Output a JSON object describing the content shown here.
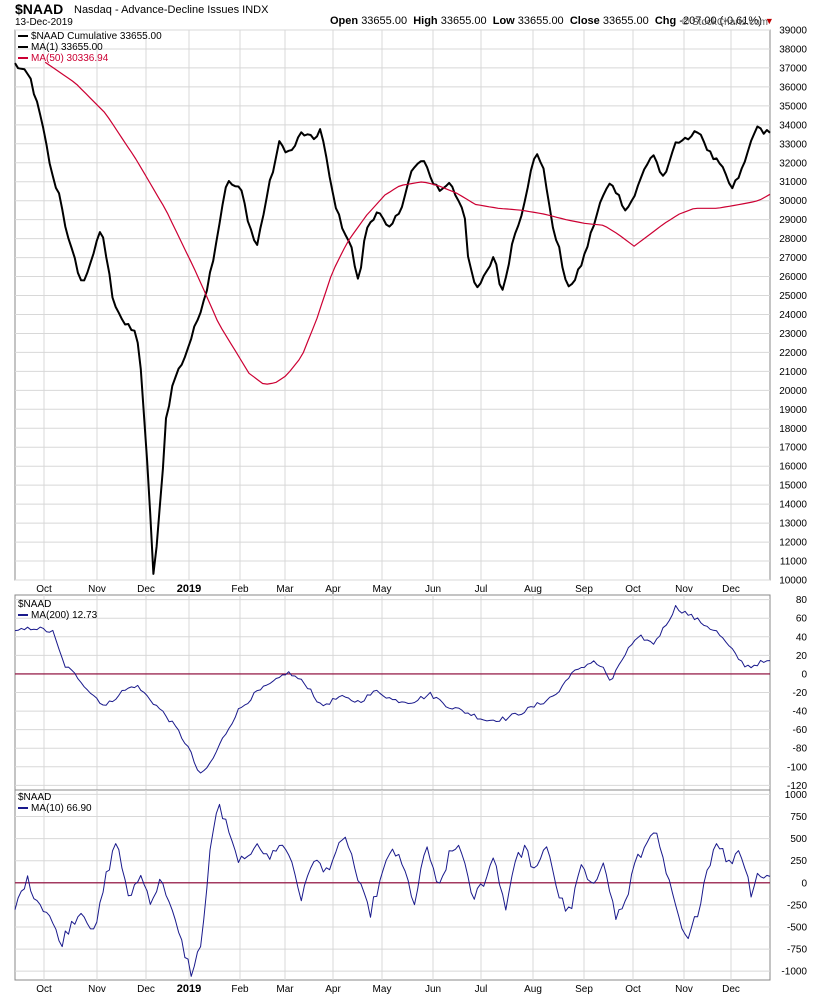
{
  "header": {
    "symbol": "$NAAD",
    "description": "Nasdaq - Advance-Decline Issues  INDX",
    "date": "13-Dec-2019",
    "open_label": "Open",
    "open": "33655.00",
    "high_label": "High",
    "high": "33655.00",
    "low_label": "Low",
    "low": "33655.00",
    "close_label": "Close",
    "close": "33655.00",
    "chg_label": "Chg",
    "chg": "-207.00 (-0.61%)",
    "brand": "© StockCharts.com"
  },
  "colors": {
    "price": "#000000",
    "ma50": "#cc0033",
    "osc": "#1a1a8c",
    "zero": "#8b0033",
    "grid": "#d8d8d8"
  },
  "legend": {
    "main": [
      "$NAAD Cumulative 33655.00",
      "MA(1) 33655.00",
      "MA(50) 30336.94"
    ],
    "panel2": [
      "$NAAD",
      "MA(200) 12.73"
    ],
    "panel3": [
      "$NAAD",
      "MA(10) 66.90"
    ]
  },
  "x_axis": {
    "labels": [
      "Oct",
      "Nov",
      "Dec",
      "2019",
      "Feb",
      "Mar",
      "Apr",
      "May",
      "Jun",
      "Jul",
      "Aug",
      "Sep",
      "Oct",
      "Nov",
      "Dec"
    ],
    "bold_label": "2019"
  },
  "chart_data": [
    {
      "type": "line",
      "title": "$NAAD Cumulative",
      "ylim": [
        10000,
        39000
      ],
      "yticks": [
        10000,
        11000,
        12000,
        13000,
        14000,
        15000,
        16000,
        17000,
        18000,
        19000,
        20000,
        21000,
        22000,
        23000,
        24000,
        25000,
        26000,
        27000,
        28000,
        29000,
        30000,
        31000,
        32000,
        33000,
        34000,
        35000,
        36000,
        37000,
        38000,
        39000
      ],
      "grid": true,
      "legend_position": "top-left",
      "series": [
        {
          "name": "MA(1) 33655.00",
          "keypoints": [
            [
              0,
              37200
            ],
            [
              0.02,
              36500
            ],
            [
              0.035,
              34200
            ],
            [
              0.05,
              31200
            ],
            [
              0.06,
              30200
            ],
            [
              0.07,
              28000
            ],
            [
              0.09,
              25500
            ],
            [
              0.1,
              26800
            ],
            [
              0.115,
              28500
            ],
            [
              0.13,
              24800
            ],
            [
              0.145,
              23500
            ],
            [
              0.16,
              23000
            ],
            [
              0.165,
              22200
            ],
            [
              0.17,
              19000
            ],
            [
              0.178,
              14500
            ],
            [
              0.183,
              10200
            ],
            [
              0.188,
              11800
            ],
            [
              0.195,
              15500
            ],
            [
              0.2,
              18500
            ],
            [
              0.21,
              20500
            ],
            [
              0.225,
              21800
            ],
            [
              0.24,
              23500
            ],
            [
              0.255,
              25500
            ],
            [
              0.265,
              27500
            ],
            [
              0.28,
              31000
            ],
            [
              0.29,
              30800
            ],
            [
              0.3,
              30500
            ],
            [
              0.31,
              28800
            ],
            [
              0.32,
              27500
            ],
            [
              0.335,
              30500
            ],
            [
              0.35,
              33000
            ],
            [
              0.365,
              32500
            ],
            [
              0.38,
              33600
            ],
            [
              0.395,
              33200
            ],
            [
              0.405,
              33800
            ],
            [
              0.42,
              30500
            ],
            [
              0.43,
              29000
            ],
            [
              0.445,
              27600
            ],
            [
              0.455,
              25600
            ],
            [
              0.465,
              28500
            ],
            [
              0.48,
              29500
            ],
            [
              0.495,
              28400
            ],
            [
              0.51,
              29500
            ],
            [
              0.525,
              31500
            ],
            [
              0.54,
              32200
            ],
            [
              0.55,
              31200
            ],
            [
              0.565,
              30500
            ],
            [
              0.575,
              31000
            ],
            [
              0.585,
              30200
            ],
            [
              0.595,
              29500
            ],
            [
              0.6,
              27200
            ],
            [
              0.61,
              25200
            ],
            [
              0.625,
              26200
            ],
            [
              0.635,
              27200
            ],
            [
              0.645,
              25000
            ],
            [
              0.66,
              28000
            ],
            [
              0.672,
              29500
            ],
            [
              0.68,
              31000
            ],
            [
              0.69,
              32500
            ],
            [
              0.7,
              31800
            ],
            [
              0.71,
              29000
            ],
            [
              0.72,
              27600
            ],
            [
              0.73,
              25500
            ],
            [
              0.742,
              25800
            ],
            [
              0.755,
              27200
            ],
            [
              0.767,
              28800
            ],
            [
              0.778,
              30200
            ],
            [
              0.79,
              31000
            ],
            [
              0.8,
              30200
            ],
            [
              0.81,
              29500
            ],
            [
              0.822,
              30400
            ],
            [
              0.835,
              31800
            ],
            [
              0.845,
              32500
            ],
            [
              0.86,
              31000
            ],
            [
              0.872,
              32800
            ],
            [
              0.885,
              33400
            ],
            [
              0.895,
              33200
            ],
            [
              0.905,
              33800
            ],
            [
              0.92,
              32500
            ],
            [
              0.935,
              31800
            ],
            [
              0.95,
              30600
            ],
            [
              0.965,
              31800
            ],
            [
              0.98,
              33800
            ],
            [
              0.99,
              33700
            ],
            [
              1,
              33655
            ]
          ]
        },
        {
          "name": "MA(50) 30336.94",
          "keypoints": [
            [
              0.04,
              37300
            ],
            [
              0.08,
              36200
            ],
            [
              0.12,
              34600
            ],
            [
              0.16,
              32200
            ],
            [
              0.2,
              29500
            ],
            [
              0.24,
              26200
            ],
            [
              0.27,
              23500
            ],
            [
              0.29,
              22200
            ],
            [
              0.31,
              20900
            ],
            [
              0.33,
              20300
            ],
            [
              0.345,
              20400
            ],
            [
              0.36,
              20800
            ],
            [
              0.38,
              21800
            ],
            [
              0.4,
              23800
            ],
            [
              0.42,
              26200
            ],
            [
              0.44,
              27800
            ],
            [
              0.465,
              29200
            ],
            [
              0.49,
              30300
            ],
            [
              0.51,
              30800
            ],
            [
              0.54,
              31000
            ],
            [
              0.56,
              30800
            ],
            [
              0.585,
              30400
            ],
            [
              0.61,
              29800
            ],
            [
              0.64,
              29600
            ],
            [
              0.67,
              29500
            ],
            [
              0.7,
              29300
            ],
            [
              0.73,
              29000
            ],
            [
              0.755,
              28800
            ],
            [
              0.78,
              28700
            ],
            [
              0.8,
              28200
            ],
            [
              0.82,
              27600
            ],
            [
              0.84,
              28200
            ],
            [
              0.86,
              28800
            ],
            [
              0.88,
              29300
            ],
            [
              0.9,
              29600
            ],
            [
              0.93,
              29600
            ],
            [
              0.96,
              29800
            ],
            [
              0.985,
              30000
            ],
            [
              1,
              30336.94
            ]
          ]
        }
      ]
    },
    {
      "type": "line",
      "title": "$NAAD",
      "ylim": [
        -125,
        85
      ],
      "yticks": [
        -120,
        -100,
        -80,
        -60,
        -40,
        -20,
        0,
        20,
        40,
        60,
        80
      ],
      "grid": true,
      "reference_line": 0,
      "series": [
        {
          "name": "MA(200) 12.73",
          "keypoints": [
            [
              0,
              45
            ],
            [
              0.025,
              50
            ],
            [
              0.05,
              45
            ],
            [
              0.065,
              10
            ],
            [
              0.085,
              -5
            ],
            [
              0.1,
              -20
            ],
            [
              0.12,
              -35
            ],
            [
              0.14,
              -20
            ],
            [
              0.16,
              -12
            ],
            [
              0.18,
              -28
            ],
            [
              0.2,
              -45
            ],
            [
              0.215,
              -60
            ],
            [
              0.23,
              -80
            ],
            [
              0.245,
              -110
            ],
            [
              0.26,
              -95
            ],
            [
              0.275,
              -70
            ],
            [
              0.295,
              -40
            ],
            [
              0.32,
              -20
            ],
            [
              0.345,
              -8
            ],
            [
              0.36,
              2
            ],
            [
              0.375,
              -5
            ],
            [
              0.39,
              -15
            ],
            [
              0.405,
              -35
            ],
            [
              0.43,
              -25
            ],
            [
              0.455,
              -30
            ],
            [
              0.48,
              -18
            ],
            [
              0.5,
              -28
            ],
            [
              0.525,
              -30
            ],
            [
              0.55,
              -22
            ],
            [
              0.575,
              -35
            ],
            [
              0.6,
              -42
            ],
            [
              0.625,
              -50
            ],
            [
              0.65,
              -48
            ],
            [
              0.675,
              -40
            ],
            [
              0.7,
              -30
            ],
            [
              0.72,
              -20
            ],
            [
              0.735,
              0
            ],
            [
              0.75,
              5
            ],
            [
              0.765,
              15
            ],
            [
              0.78,
              5
            ],
            [
              0.79,
              -10
            ],
            [
              0.8,
              10
            ],
            [
              0.815,
              30
            ],
            [
              0.83,
              40
            ],
            [
              0.845,
              32
            ],
            [
              0.86,
              50
            ],
            [
              0.875,
              72
            ],
            [
              0.89,
              65
            ],
            [
              0.91,
              55
            ],
            [
              0.93,
              45
            ],
            [
              0.95,
              25
            ],
            [
              0.965,
              10
            ],
            [
              0.975,
              8
            ],
            [
              0.985,
              12
            ],
            [
              1,
              12.73
            ]
          ]
        }
      ]
    },
    {
      "type": "line",
      "title": "$NAAD",
      "ylim": [
        -1100,
        1050
      ],
      "yticks": [
        -1000,
        -750,
        -500,
        -250,
        0,
        250,
        500,
        750,
        1000
      ],
      "grid": true,
      "reference_line": 0,
      "series": [
        {
          "name": "MA(10) 66.90",
          "keypoints": [
            [
              0,
              -300
            ],
            [
              0.015,
              50
            ],
            [
              0.03,
              -200
            ],
            [
              0.045,
              -350
            ],
            [
              0.06,
              -700
            ],
            [
              0.075,
              -450
            ],
            [
              0.09,
              -300
            ],
            [
              0.105,
              -600
            ],
            [
              0.12,
              50
            ],
            [
              0.135,
              500
            ],
            [
              0.15,
              -200
            ],
            [
              0.165,
              100
            ],
            [
              0.18,
              -200
            ],
            [
              0.195,
              50
            ],
            [
              0.21,
              -400
            ],
            [
              0.225,
              -800
            ],
            [
              0.235,
              -1050
            ],
            [
              0.248,
              -600
            ],
            [
              0.258,
              300
            ],
            [
              0.268,
              900
            ],
            [
              0.28,
              650
            ],
            [
              0.29,
              350
            ],
            [
              0.305,
              200
            ],
            [
              0.32,
              500
            ],
            [
              0.335,
              250
            ],
            [
              0.35,
              450
            ],
            [
              0.365,
              300
            ],
            [
              0.38,
              -200
            ],
            [
              0.395,
              300
            ],
            [
              0.41,
              100
            ],
            [
              0.425,
              350
            ],
            [
              0.44,
              500
            ],
            [
              0.455,
              0
            ],
            [
              0.47,
              -350
            ],
            [
              0.485,
              50
            ],
            [
              0.5,
              400
            ],
            [
              0.515,
              150
            ],
            [
              0.53,
              -250
            ],
            [
              0.545,
              450
            ],
            [
              0.56,
              -100
            ],
            [
              0.575,
              300
            ],
            [
              0.59,
              450
            ],
            [
              0.605,
              -200
            ],
            [
              0.62,
              0
            ],
            [
              0.635,
              300
            ],
            [
              0.65,
              -300
            ],
            [
              0.66,
              200
            ],
            [
              0.675,
              400
            ],
            [
              0.69,
              100
            ],
            [
              0.705,
              450
            ],
            [
              0.72,
              -150
            ],
            [
              0.735,
              -350
            ],
            [
              0.75,
              200
            ],
            [
              0.765,
              -100
            ],
            [
              0.78,
              300
            ],
            [
              0.795,
              -400
            ],
            [
              0.81,
              -200
            ],
            [
              0.82,
              200
            ],
            [
              0.835,
              400
            ],
            [
              0.845,
              650
            ],
            [
              0.86,
              200
            ],
            [
              0.875,
              -300
            ],
            [
              0.89,
              -700
            ],
            [
              0.905,
              -300
            ],
            [
              0.915,
              100
            ],
            [
              0.93,
              500
            ],
            [
              0.945,
              200
            ],
            [
              0.96,
              400
            ],
            [
              0.975,
              -100
            ],
            [
              0.985,
              150
            ],
            [
              0.99,
              50
            ],
            [
              1,
              66.9
            ]
          ]
        }
      ]
    }
  ]
}
